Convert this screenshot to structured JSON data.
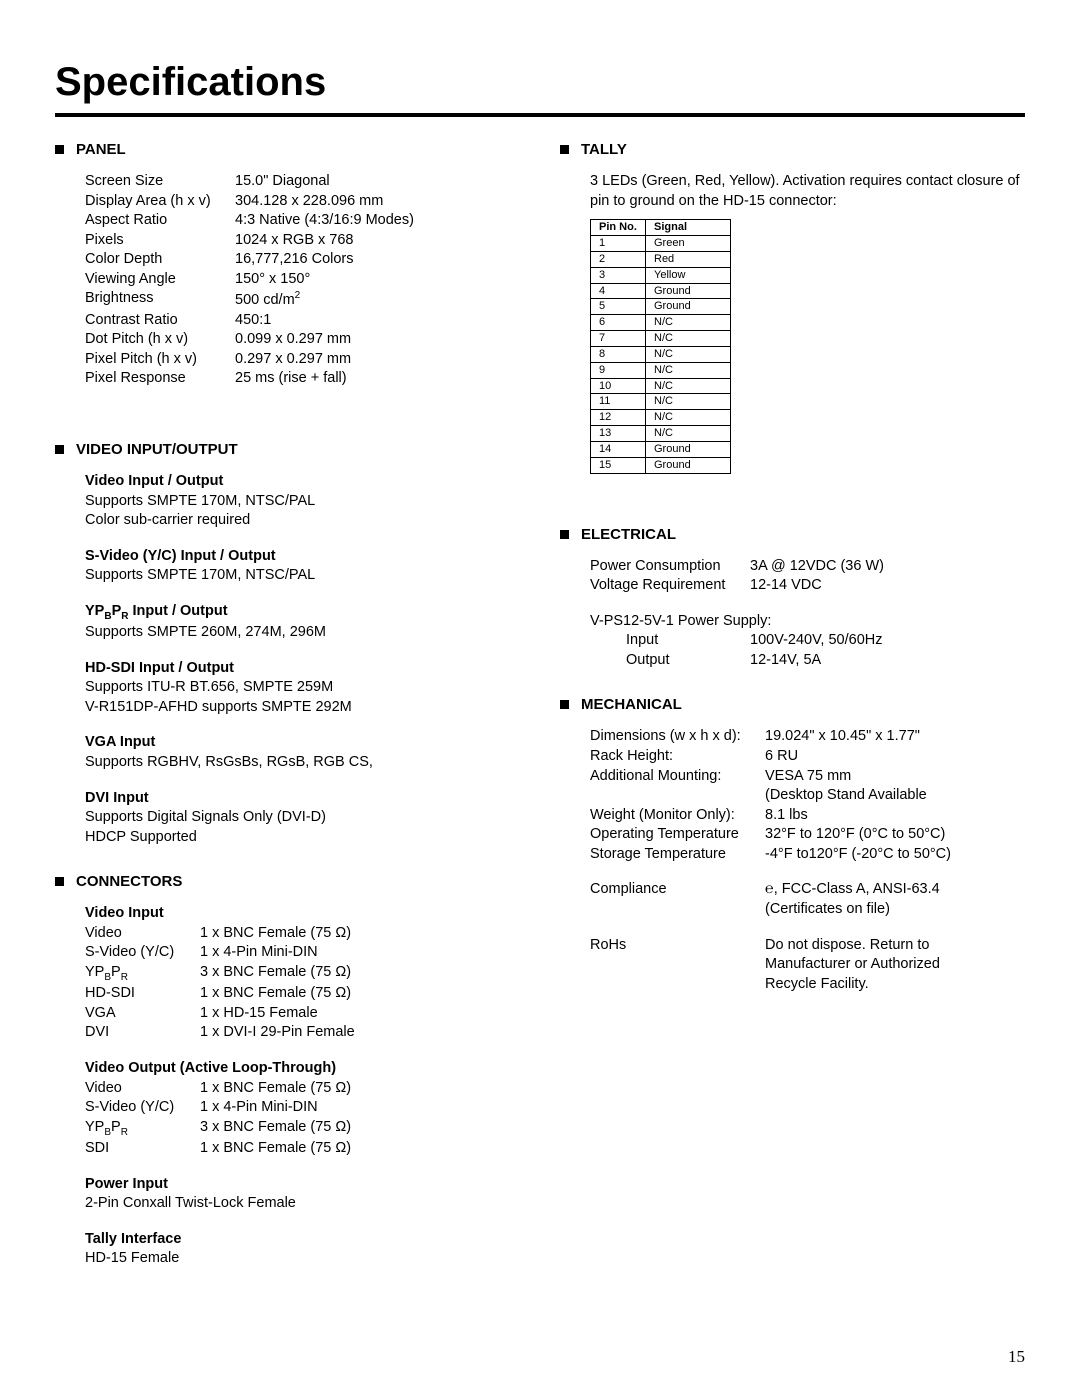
{
  "page": {
    "title": "Specifications",
    "number": "15"
  },
  "panel": {
    "title": "Panel",
    "rows": [
      {
        "label": "Screen Size",
        "value": "15.0\" Diagonal"
      },
      {
        "label": "Display Area (h x v)",
        "value": "304.128 x 228.096 mm"
      },
      {
        "label": "Aspect Ratio",
        "value": "4:3 Native (4:3/16:9 Modes)"
      },
      {
        "label": "Pixels",
        "value": "1024 x RGB x 768"
      },
      {
        "label": "Color Depth",
        "value": "16,777,216 Colors"
      },
      {
        "label": "Viewing Angle",
        "value": "150° x 150°"
      },
      {
        "label": "Brightness",
        "value_html": "500 cd/m<sup>2</sup>"
      },
      {
        "label": "Contrast Ratio",
        "value": "450:1"
      },
      {
        "label": "Dot Pitch (h x v)",
        "value": "0.099 x 0.297 mm"
      },
      {
        "label": "Pixel Pitch (h x v)",
        "value": "0.297 x 0.297 mm"
      },
      {
        "label": "Pixel Response",
        "value": "25 ms (rise + fall)"
      }
    ]
  },
  "video_io": {
    "title": "Video Input/Output",
    "groups": [
      {
        "heading": "Video Input / Output",
        "lines": [
          "Supports SMPTE 170M, NTSC/PAL",
          "Color sub-carrier required"
        ]
      },
      {
        "heading": "S-Video (Y/C) Input / Output",
        "lines": [
          "Supports SMPTE 170M, NTSC/PAL"
        ]
      },
      {
        "heading_html": "YP<sub>B</sub>P<sub>R</sub> Input / Output",
        "lines": [
          "Supports SMPTE 260M, 274M, 296M"
        ]
      },
      {
        "heading": "HD-SDI Input / Output",
        "lines": [
          "Supports ITU-R BT.656, SMPTE 259M",
          "V-R151DP-AFHD supports SMPTE 292M"
        ]
      },
      {
        "heading": "VGA Input",
        "lines": [
          "Supports RGBHV, RsGsBs, RGsB, RGB CS,"
        ]
      },
      {
        "heading": "DVI Input",
        "lines": [
          "Supports Digital Signals Only (DVI-D)",
          "HDCP Supported"
        ]
      }
    ]
  },
  "connectors": {
    "title": "Connectors",
    "groups": [
      {
        "heading": "Video Input",
        "rows": [
          {
            "label": "Video",
            "value": "1 x BNC Female (75 Ω)"
          },
          {
            "label": "S-Video (Y/C)",
            "value": "1 x 4-Pin Mini-DIN"
          },
          {
            "label_html": "YP<sub>B</sub>P<sub>R</sub>",
            "value": "3 x BNC Female (75 Ω)"
          },
          {
            "label": "HD-SDI",
            "value": "1 x BNC Female (75 Ω)"
          },
          {
            "label": "VGA",
            "value": "1 x HD-15 Female"
          },
          {
            "label": "DVI",
            "value": "1 x DVI-I 29-Pin Female"
          }
        ]
      },
      {
        "heading": "Video Output (Active Loop-Through)",
        "rows": [
          {
            "label": "Video",
            "value": "1 x BNC Female (75 Ω)"
          },
          {
            "label": "S-Video (Y/C)",
            "value": "1 x 4-Pin Mini-DIN"
          },
          {
            "label_html": "YP<sub>B</sub>P<sub>R</sub>",
            "value": "3 x BNC Female (75 Ω)"
          },
          {
            "label": "SDI",
            "value": "1 x BNC Female (75 Ω)"
          }
        ]
      },
      {
        "heading": "Power Input",
        "lines": [
          "2-Pin Conxall Twist-Lock Female"
        ]
      },
      {
        "heading": "Tally Interface",
        "lines": [
          "HD-15 Female"
        ]
      }
    ]
  },
  "tally": {
    "title": "Tally",
    "desc": "3 LEDs (Green, Red, Yellow). Activation requires contact closure of pin to ground on the HD-15 connector:",
    "table": {
      "headers": [
        "Pin No.",
        "Signal"
      ],
      "rows": [
        [
          "1",
          "Green"
        ],
        [
          "2",
          "Red"
        ],
        [
          "3",
          "Yellow"
        ],
        [
          "4",
          "Ground"
        ],
        [
          "5",
          "Ground"
        ],
        [
          "6",
          "N/C"
        ],
        [
          "7",
          "N/C"
        ],
        [
          "8",
          "N/C"
        ],
        [
          "9",
          "N/C"
        ],
        [
          "10",
          "N/C"
        ],
        [
          "11",
          "N/C"
        ],
        [
          "12",
          "N/C"
        ],
        [
          "13",
          "N/C"
        ],
        [
          "14",
          "Ground"
        ],
        [
          "15",
          "Ground"
        ]
      ]
    }
  },
  "electrical": {
    "title": "Electrical",
    "rows": [
      {
        "label": "Power Consumption",
        "value": "3A @ 12VDC (36 W)"
      },
      {
        "label": "Voltage Requirement",
        "value": "12-14 VDC"
      }
    ],
    "ps_title": "V-PS12-5V-1 Power Supply:",
    "ps_rows": [
      {
        "label": "Input",
        "value": "100V-240V, 50/60Hz"
      },
      {
        "label": "Output",
        "value": "12-14V, 5A"
      }
    ]
  },
  "mechanical": {
    "title": "Mechanical",
    "rows": [
      {
        "label": "Dimensions (w x h x d):",
        "value": "19.024\" x 10.45\" x 1.77\""
      },
      {
        "label": "Rack Height:",
        "value": "6 RU"
      },
      {
        "label": "Additional Mounting:",
        "value": "VESA 75 mm"
      },
      {
        "label": "",
        "value": "(Desktop Stand Available"
      },
      {
        "label": "Weight (Monitor Only):",
        "value": "8.1 lbs"
      },
      {
        "label": "Operating Temperature",
        "value": "32°F to 120°F (0°C to 50°C)"
      },
      {
        "label": "Storage Temperature",
        "value": "-4°F to120°F (-20°C to 50°C)"
      }
    ],
    "extra": [
      {
        "label": "Compliance",
        "value_lines": [
          "℮, FCC-Class A, ANSI-63.4",
          "(Certificates on file)"
        ]
      },
      {
        "label": "RoHs",
        "value_lines": [
          "Do not dispose. Return to",
          "Manufacturer or Authorized",
          "Recycle Facility."
        ]
      }
    ]
  }
}
